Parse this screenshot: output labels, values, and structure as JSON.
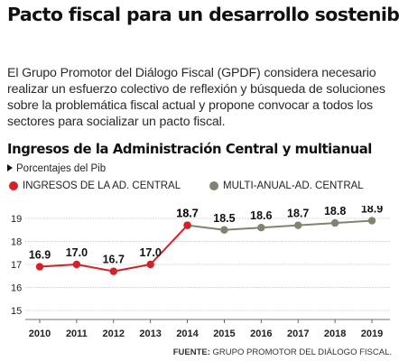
{
  "headline": "Pacto fiscal para un desarrollo sostenible",
  "intro": "El Grupo Promotor del Diálogo Fiscal (GPDF) considera necesario realizar un esfuerzo colectivo de reflexión y búsqueda de soluciones sobre la problemática fiscal actual y propone convocar a todos los sectores para socializar un pacto fiscal.",
  "source": {
    "label": "FUENTE:",
    "text": " GRUPO PROMOTOR DEL DIÁLOGO FISCAL."
  },
  "chart_data": {
    "type": "line",
    "title": "Ingresos de la Administración Central y multianual",
    "unit_label": "Porcentajes del Pib",
    "x": [
      "2010",
      "2011",
      "2012",
      "2013",
      "2014",
      "2015",
      "2016",
      "2017",
      "2018",
      "2019"
    ],
    "ylim": [
      15,
      19
    ],
    "yticks": [
      15,
      16,
      17,
      18,
      19
    ],
    "grid": true,
    "legend_position": "top",
    "series": [
      {
        "name": "INGRESOS DE LA AD. CENTRAL",
        "color": "#d42027",
        "x": [
          "2010",
          "2011",
          "2012",
          "2013",
          "2014"
        ],
        "values": [
          16.9,
          17.0,
          16.7,
          17.0,
          18.7
        ],
        "labels": [
          "16.9",
          "17.0",
          "16.7",
          "17.0",
          "18.7"
        ]
      },
      {
        "name": "MULTI-ANUAL-AD. CENTRAL",
        "color": "#7d8470",
        "x": [
          "2014",
          "2015",
          "2016",
          "2017",
          "2018",
          "2019"
        ],
        "values": [
          18.7,
          18.5,
          18.6,
          18.7,
          18.8,
          18.9
        ],
        "labels": [
          "",
          "18.5",
          "18.6",
          "18.7",
          "18.8",
          "18.9"
        ]
      }
    ]
  }
}
